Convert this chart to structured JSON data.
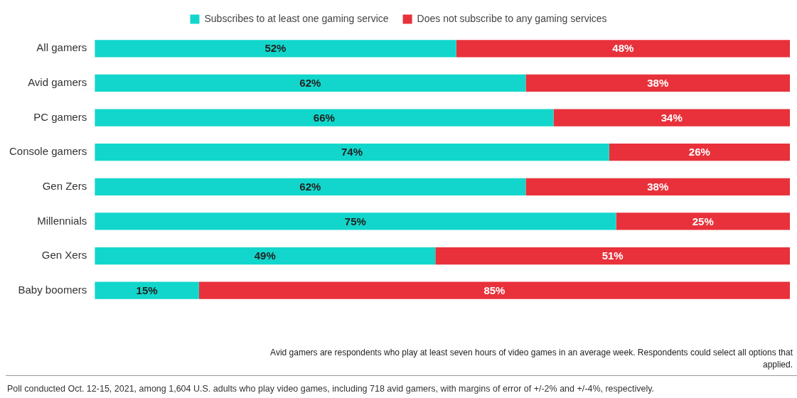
{
  "chart_data": {
    "type": "bar",
    "orientation": "horizontal",
    "stacked": true,
    "legend": "top",
    "categories": [
      "All gamers",
      "Avid gamers",
      "PC gamers",
      "Console gamers",
      "Gen Zers",
      "Millennials",
      "Gen Xers",
      "Baby boomers"
    ],
    "series": [
      {
        "name": "Subscribes to at least one gaming service",
        "color": "#12d6cb",
        "values": [
          52,
          62,
          66,
          74,
          62,
          75,
          49,
          15
        ],
        "value_labels": [
          "52%",
          "62%",
          "66%",
          "74%",
          "62%",
          "75%",
          "49%",
          "15%"
        ]
      },
      {
        "name": "Does not subscribe to any gaming services",
        "color": "#e8313a",
        "values": [
          48,
          38,
          34,
          26,
          38,
          25,
          51,
          85
        ],
        "value_labels": [
          "48%",
          "38%",
          "34%",
          "26%",
          "38%",
          "25%",
          "51%",
          "85%"
        ]
      }
    ],
    "annotations": [
      "Avid gamers are respondents who play at least seven hours of video games in an average week. Respondents could select all options that applied.",
      "Poll conducted Oct. 12-15, 2021, among 1,604 U.S. adults who play video games, including 718 avid gamers, with margins of error of +/-2% and +/-4%, respectively."
    ]
  }
}
